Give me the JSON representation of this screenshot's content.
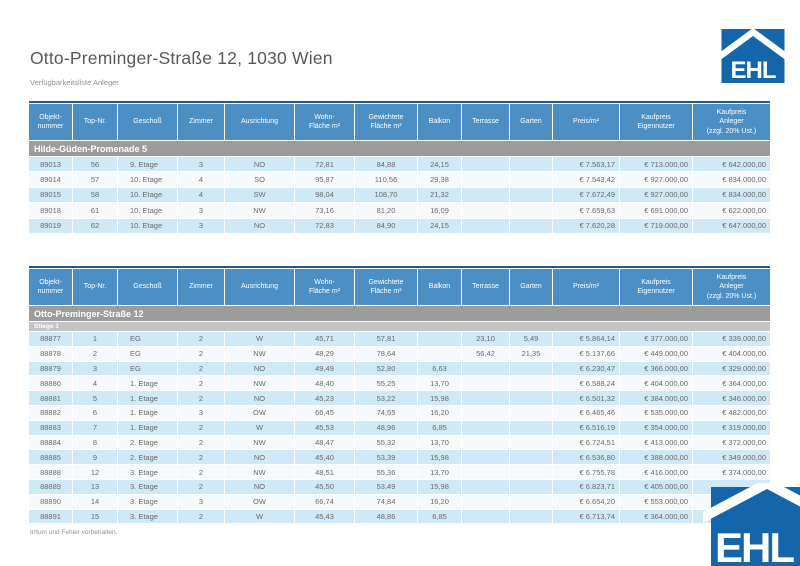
{
  "page": {
    "title": "Otto-Preminger-Straße 12, 1030 Wien",
    "subtitle": "Verfügbarkeitsliste Anleger",
    "footer": "Irrtum und Fehler vorbehalten.",
    "logo_text": "EHL"
  },
  "colors": {
    "header_blue": "#4b8fc5",
    "top_border_blue": "#1f5c8c",
    "row_light_blue": "#cfe9f7",
    "row_white": "#f7fafc",
    "section_gray": "#9c9c9c",
    "subsection_gray": "#c3c3c3",
    "logo_blue": "#1565ab"
  },
  "columns": [
    "Objekt-\nnummer",
    "Top-Nr.",
    "Geschoß",
    "Zimmer",
    "Ausrichtung",
    "Wohn-\nFläche m²",
    "Gewichtete\nFläche m²",
    "Balkon",
    "Terrasse",
    "Garten",
    "Preis/m²",
    "Kaufpreis\nEigennutzer",
    "Kaufpreis\nAnleger\n(zzgl. 20% Ust.)"
  ],
  "tables": [
    {
      "section": "Hilde-Güden-Promenade 5",
      "subsection": null,
      "rows": [
        [
          "89013",
          "56",
          "9. Etage",
          "3",
          "NO",
          "72,81",
          "84,88",
          "24,15",
          "",
          "",
          "€ 7.563,17",
          "€ 713.000,00",
          "€ 642.000,00"
        ],
        [
          "89014",
          "57",
          "10. Etage",
          "4",
          "SO",
          "95,87",
          "110,56",
          "29,38",
          "",
          "",
          "€ 7.543,42",
          "€ 927.000,00",
          "€ 834.000,00"
        ],
        [
          "89015",
          "58",
          "10. Etage",
          "4",
          "SW",
          "98,04",
          "108,70",
          "21,32",
          "",
          "",
          "€ 7.672,49",
          "€ 927.000,00",
          "€ 834.000,00"
        ],
        [
          "89018",
          "61",
          "10. Etage",
          "3",
          "NW",
          "73,16",
          "81,20",
          "16,09",
          "",
          "",
          "€ 7.659,63",
          "€ 691.000,00",
          "€ 622.000,00"
        ],
        [
          "89019",
          "62",
          "10. Etage",
          "3",
          "NO",
          "72,83",
          "84,90",
          "24,15",
          "",
          "",
          "€ 7.620,28",
          "€ 719.000,00",
          "€ 647.000,00"
        ]
      ]
    },
    {
      "section": "Otto-Preminger-Straße 12",
      "subsection": "Stiege 1",
      "rows": [
        [
          "88877",
          "1",
          "EG",
          "2",
          "W",
          "45,71",
          "57,81",
          "",
          "23,10",
          "5,49",
          "€ 5.864,14",
          "€ 377.000,00",
          "€ 339.000,00"
        ],
        [
          "88878",
          "2",
          "EG",
          "2",
          "NW",
          "48,29",
          "78,64",
          "",
          "56,42",
          "21,35",
          "€ 5.137,66",
          "€ 449.000,00",
          "€ 404.000,00"
        ],
        [
          "88879",
          "3",
          "EG",
          "2",
          "NO",
          "49,49",
          "52,80",
          "6,63",
          "",
          "",
          "€ 6.230,47",
          "€ 366.000,00",
          "€ 329.000,00"
        ],
        [
          "88880",
          "4",
          "1. Etage",
          "2",
          "NW",
          "48,40",
          "55,25",
          "13,70",
          "",
          "",
          "€ 6.588,24",
          "€ 404.000,00",
          "€ 364.000,00"
        ],
        [
          "88881",
          "5",
          "1. Etage",
          "2",
          "NO",
          "45,23",
          "53,22",
          "15,98",
          "",
          "",
          "€ 6.501,32",
          "€ 384.000,00",
          "€ 346.000,00"
        ],
        [
          "88882",
          "6",
          "1. Etage",
          "3",
          "OW",
          "66,45",
          "74,55",
          "16,20",
          "",
          "",
          "€ 6.465,46",
          "€ 535.000,00",
          "€ 482.000,00"
        ],
        [
          "88883",
          "7",
          "1. Etage",
          "2",
          "W",
          "45,53",
          "48,96",
          "6,85",
          "",
          "",
          "€ 6.516,19",
          "€ 354.000,00",
          "€ 319.000,00"
        ],
        [
          "88884",
          "8",
          "2. Etage",
          "2",
          "NW",
          "48,47",
          "55,32",
          "13,70",
          "",
          "",
          "€ 6.724,51",
          "€ 413.000,00",
          "€ 372.000,00"
        ],
        [
          "88885",
          "9",
          "2. Etage",
          "2",
          "NO",
          "45,40",
          "53,39",
          "15,98",
          "",
          "",
          "€ 6.536,80",
          "€ 388.000,00",
          "€ 349.000,00"
        ],
        [
          "88888",
          "12",
          "3. Etage",
          "2",
          "NW",
          "48,51",
          "55,36",
          "13,70",
          "",
          "",
          "€ 6.755,78",
          "€ 416.000,00",
          "€ 374.000,00"
        ],
        [
          "88889",
          "13",
          "3. Etage",
          "2",
          "NO",
          "45,50",
          "53,49",
          "15,98",
          "",
          "",
          "€ 6.823,71",
          "€ 405.000,00",
          "€"
        ],
        [
          "88890",
          "14",
          "3. Etage",
          "3",
          "OW",
          "66,74",
          "74,84",
          "16,20",
          "",
          "",
          "€ 6.654,20",
          "€ 553.000,00",
          "€"
        ],
        [
          "88891",
          "15",
          "3. Etage",
          "2",
          "W",
          "45,43",
          "48,86",
          "6,85",
          "",
          "",
          "€ 6.713,74",
          "€ 364.000,00",
          "€"
        ]
      ]
    }
  ]
}
